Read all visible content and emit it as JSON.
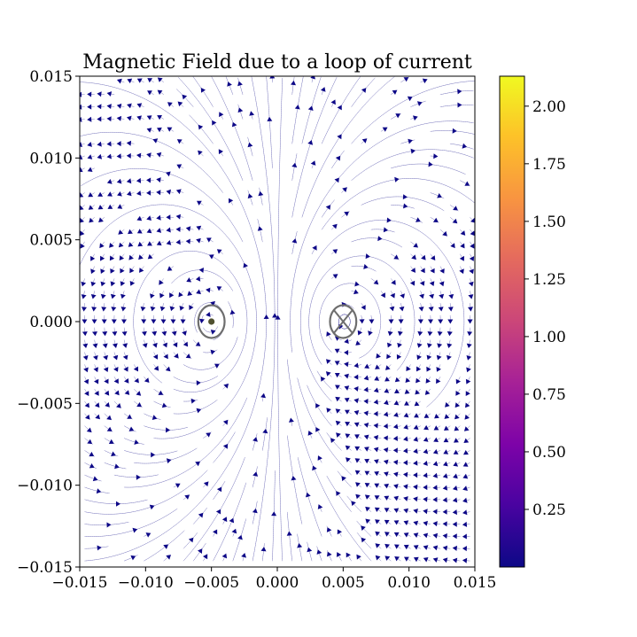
{
  "chart_data": {
    "type": "streamplot",
    "title": "Magnetic Field due to a loop of current",
    "xlabel": "",
    "ylabel": "",
    "xlim": [
      -0.015,
      0.015
    ],
    "ylim": [
      -0.015,
      0.015
    ],
    "x_ticks": [
      "−0.015",
      "−0.010",
      "−0.005",
      "0.000",
      "0.005",
      "0.010",
      "0.015"
    ],
    "y_ticks": [
      "−0.015",
      "−0.010",
      "−0.005",
      "0.000",
      "0.005",
      "0.010",
      "0.015"
    ],
    "x_tick_values": [
      -0.015,
      -0.01,
      -0.005,
      0.0,
      0.005,
      0.01,
      0.015
    ],
    "y_tick_values": [
      -0.015,
      -0.01,
      -0.005,
      0.0,
      0.005,
      0.01,
      0.015
    ],
    "grid": false,
    "colormap": "plasma",
    "colorbar": {
      "min": 0.0,
      "max": 2.13,
      "ticks": [
        "0.25",
        "0.50",
        "0.75",
        "1.00",
        "1.25",
        "1.50",
        "1.75",
        "2.00"
      ],
      "tick_values": [
        0.25,
        0.5,
        0.75,
        1.0,
        1.25,
        1.5,
        1.75,
        2.0
      ]
    },
    "conductors": [
      {
        "name": "current out of page",
        "x": -0.005,
        "y": 0.0,
        "radius": 0.001,
        "symbol": "dot"
      },
      {
        "name": "current into page",
        "x": 0.005,
        "y": 0.0,
        "radius": 0.001,
        "symbol": "cross"
      }
    ],
    "dipole_half_separation": 0.005,
    "field_scale_max": 2.13
  }
}
